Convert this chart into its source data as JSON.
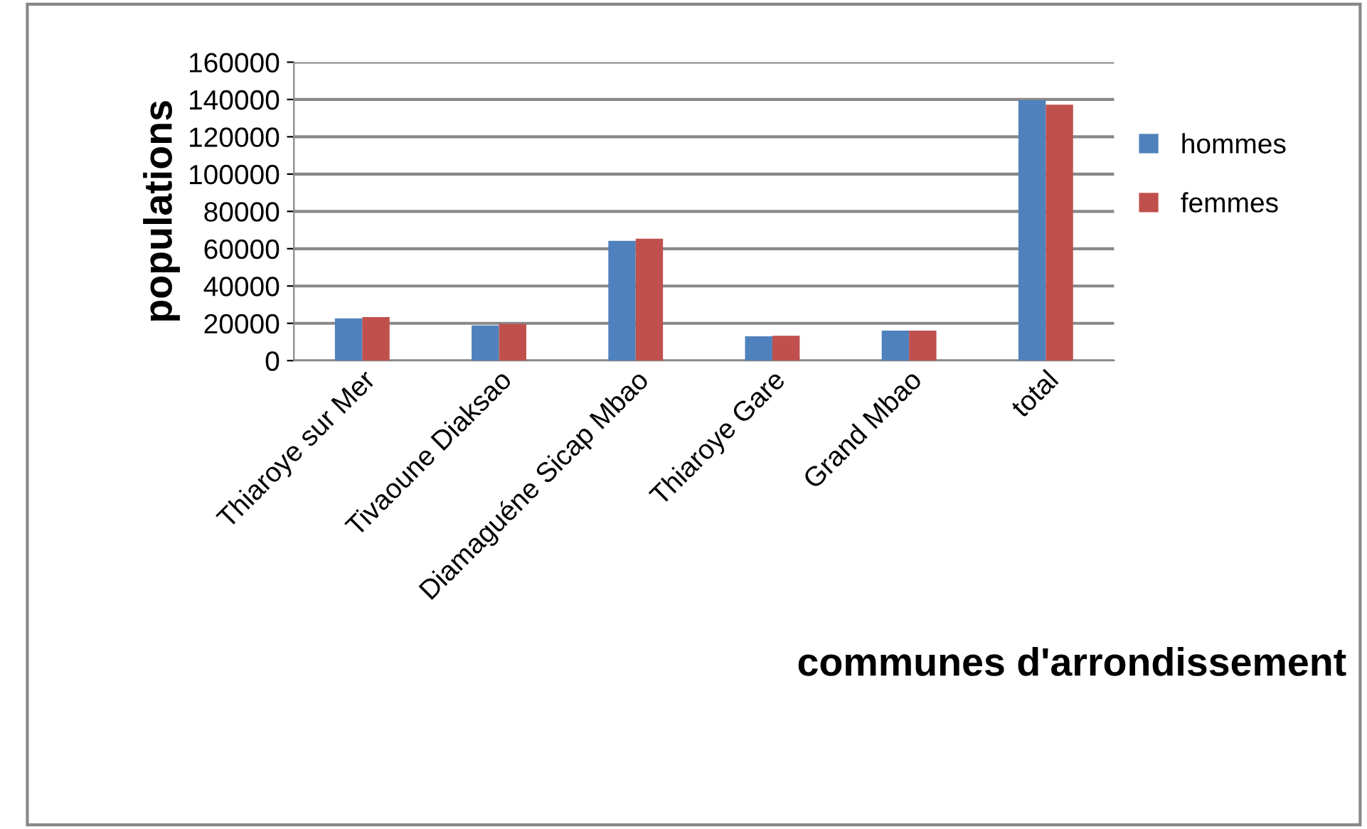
{
  "chart_data": {
    "type": "bar",
    "xlabel": "communes d'arrondissement",
    "ylabel": "populations",
    "categories": [
      "Thiaroye sur Mer",
      "Tivaoune Diaksao",
      "Diamaguéne Sicap Mbao",
      "Thiaroye Gare",
      "Grand Mbao",
      "total"
    ],
    "series": [
      {
        "name": "hommes",
        "color": "#4f81bd",
        "values": [
          22700,
          18900,
          64200,
          13000,
          16100,
          139600
        ]
      },
      {
        "name": "femmes",
        "color": "#c0504d",
        "values": [
          23300,
          19700,
          65400,
          13300,
          16100,
          137200
        ]
      }
    ],
    "ylim": [
      0,
      160000
    ],
    "yticks": [
      0,
      20000,
      40000,
      60000,
      80000,
      100000,
      120000,
      140000,
      160000
    ],
    "grid": "y",
    "legend": "right"
  }
}
